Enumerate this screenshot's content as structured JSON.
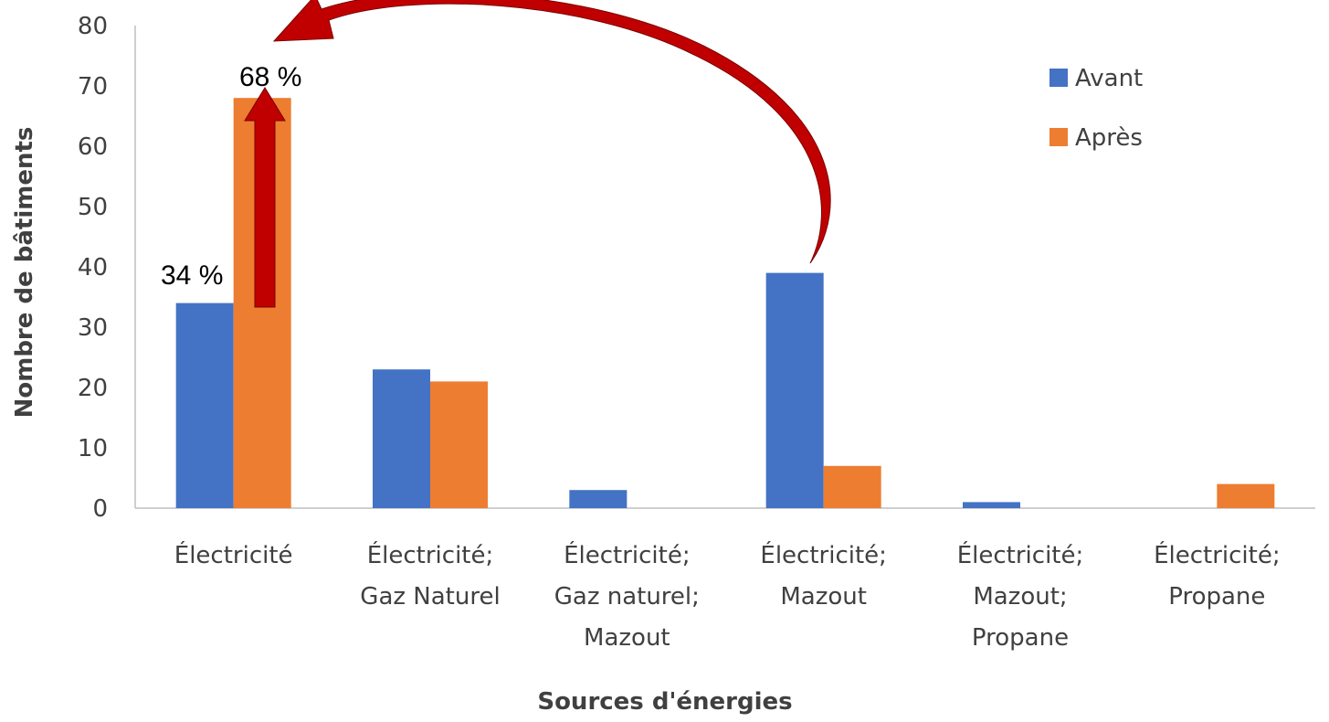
{
  "chart_data": {
    "type": "bar",
    "xlabel": "Sources d'énergies",
    "ylabel": "Nombre de bâtiments",
    "ylim": [
      0,
      80
    ],
    "yticks": [
      0,
      10,
      20,
      30,
      40,
      50,
      60,
      70,
      80
    ],
    "categories": [
      [
        "Électricité"
      ],
      [
        "Électricité;",
        "Gaz Naturel"
      ],
      [
        "Électricité;",
        "Gaz naturel;",
        "Mazout"
      ],
      [
        "Électricité;",
        "Mazout"
      ],
      [
        "Électricité;",
        "Mazout;",
        "Propane"
      ],
      [
        "Électricité;",
        "Propane"
      ]
    ],
    "series": [
      {
        "name": "Avant",
        "color": "#4472C4",
        "values": [
          34,
          23,
          3,
          39,
          1,
          0
        ]
      },
      {
        "name": "Après",
        "color": "#ED7D31",
        "values": [
          68,
          21,
          0,
          7,
          0,
          4
        ]
      }
    ],
    "grid": false,
    "legend_position": "top-right",
    "annotations": {
      "before_label": "34 %",
      "after_label": "68 %",
      "arrow_color": "#C00000"
    }
  }
}
